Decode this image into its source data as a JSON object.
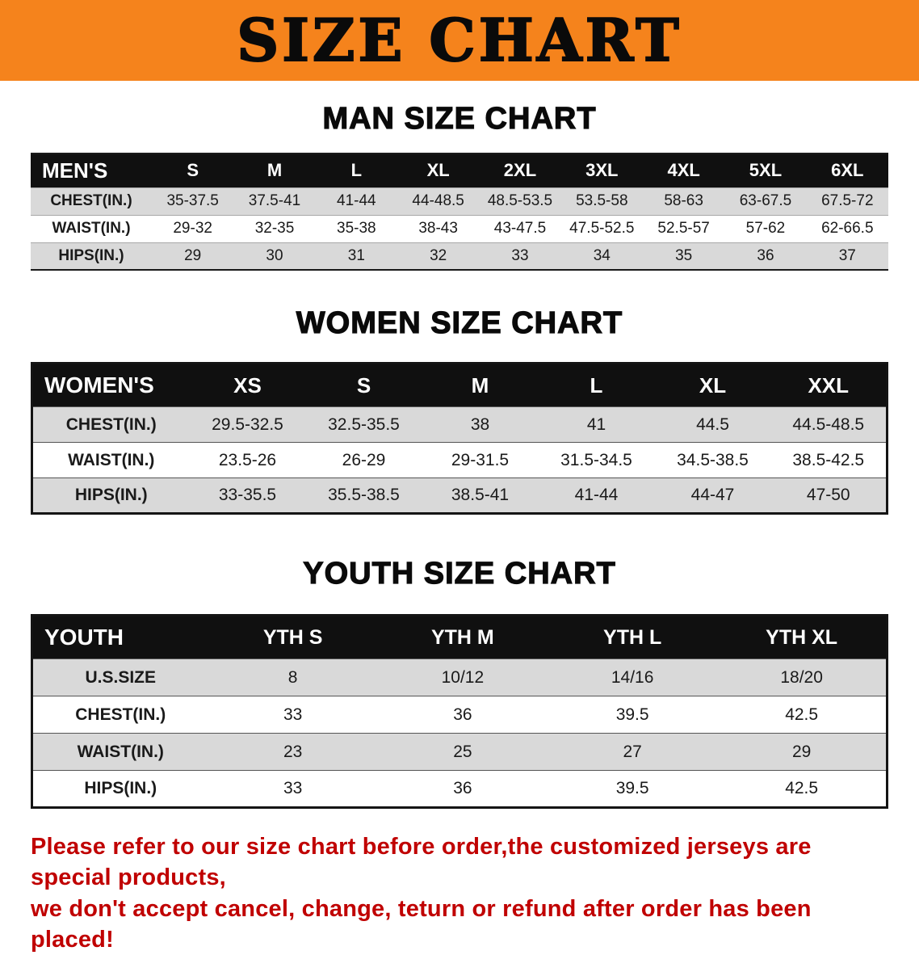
{
  "banner": {
    "title": "SIZE CHART"
  },
  "colors": {
    "banner_bg": "#F5831C",
    "header_bg": "#101010",
    "row_shade": "#D9D9D9",
    "note_red": "#C00000"
  },
  "sections": [
    {
      "heading": "MAN SIZE CHART",
      "table": {
        "header": [
          "MEN'S",
          "S",
          "M",
          "L",
          "XL",
          "2XL",
          "3XL",
          "4XL",
          "5XL",
          "6XL"
        ],
        "rows": [
          [
            "CHEST(IN.)",
            "35-37.5",
            "37.5-41",
            "41-44",
            "44-48.5",
            "48.5-53.5",
            "53.5-58",
            "58-63",
            "63-67.5",
            "67.5-72"
          ],
          [
            "WAIST(IN.)",
            "29-32",
            "32-35",
            "35-38",
            "38-43",
            "43-47.5",
            "47.5-52.5",
            "52.5-57",
            "57-62",
            "62-66.5"
          ],
          [
            "HIPS(IN.)",
            "29",
            "30",
            "31",
            "32",
            "33",
            "34",
            "35",
            "36",
            "37"
          ]
        ]
      }
    },
    {
      "heading": "WOMEN SIZE CHART",
      "table": {
        "header": [
          "WOMEN'S",
          "XS",
          "S",
          "M",
          "L",
          "XL",
          "XXL"
        ],
        "rows": [
          [
            "CHEST(IN.)",
            "29.5-32.5",
            "32.5-35.5",
            "38",
            "41",
            "44.5",
            "44.5-48.5"
          ],
          [
            "WAIST(IN.)",
            "23.5-26",
            "26-29",
            "29-31.5",
            "31.5-34.5",
            "34.5-38.5",
            "38.5-42.5"
          ],
          [
            "HIPS(IN.)",
            "33-35.5",
            "35.5-38.5",
            "38.5-41",
            "41-44",
            "44-47",
            "47-50"
          ]
        ]
      }
    },
    {
      "heading": "YOUTH SIZE CHART",
      "table": {
        "header": [
          "YOUTH",
          "YTH S",
          "YTH M",
          "YTH L",
          "YTH XL"
        ],
        "rows": [
          [
            "U.S.SIZE",
            "8",
            "10/12",
            "14/16",
            "18/20"
          ],
          [
            "CHEST(IN.)",
            "33",
            "36",
            "39.5",
            "42.5"
          ],
          [
            "WAIST(IN.)",
            "23",
            "25",
            "27",
            "29"
          ],
          [
            "HIPS(IN.)",
            "33",
            "36",
            "39.5",
            "42.5"
          ]
        ]
      }
    }
  ],
  "footnote": {
    "line1": "Please refer to our size chart before order,the customized jerseys are special products,",
    "line2": "we don't accept cancel, change, teturn or refund after order has been placed!"
  }
}
